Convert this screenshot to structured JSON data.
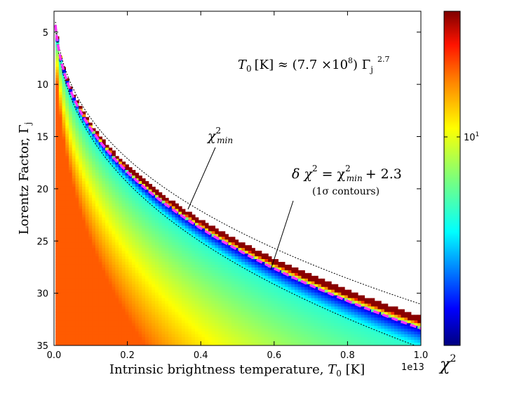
{
  "chart_data": {
    "type": "heatmap",
    "xlabel": "Intrinsic brightness temperature, T0 [K]",
    "xlabel_main": "Intrinsic brightness temperature,",
    "xlabel_sym": "T",
    "xlabel_sub": "0",
    "xlabel_unit": "[K]",
    "ylabel": "Lorentz Factor, Γj",
    "ylabel_main": "Lorentz Factor,",
    "ylabel_sym": "Γ",
    "ylabel_sub": "j",
    "x_offset_label": "1e13",
    "xlim": [
      0.0,
      1.0
    ],
    "ylim": [
      35,
      3
    ],
    "x_ticks": [
      "0.0",
      "0.2",
      "0.4",
      "0.6",
      "0.8",
      "1.0"
    ],
    "x_tick_values": [
      0.0,
      0.2,
      0.4,
      0.6,
      0.8,
      1.0
    ],
    "y_ticks": [
      "5",
      "10",
      "15",
      "20",
      "25",
      "30",
      "35"
    ],
    "y_tick_values": [
      5,
      10,
      15,
      20,
      25,
      30,
      35
    ],
    "colorbar": {
      "label": "χ",
      "label_sup": "2",
      "scale": "log",
      "tick_label": "10",
      "tick_label_sup": "1",
      "tick_value": 10
    },
    "fit_curve": {
      "name": "T0 best fit",
      "coefficient": 770000000.0,
      "exponent": 2.7,
      "color": "#ff33ff",
      "style": "dashed"
    },
    "contours": [
      {
        "name": "1 sigma lower",
        "gamma_factor": 0.93,
        "style": "dotted"
      },
      {
        "name": "1 sigma upper",
        "gamma_factor": 1.055,
        "style": "dotted"
      }
    ],
    "annotations": {
      "relation": {
        "lhs": "T",
        "lhs_sub": "0",
        "unit": "[K] ≈ (7.7 ×10",
        "exp8": "8",
        "close": ") Γ",
        "sub": "j",
        "pow": "2.7"
      },
      "chi_min": {
        "chi": "χ",
        "sup": "2",
        "sub": "min"
      },
      "delta_chi": {
        "delta": "δ χ",
        "sup": "2",
        "eq": "= χ",
        "sup2": "2",
        "sub": "min",
        "tail": "+ 2.3"
      },
      "contours_note": "(1σ contours)"
    }
  }
}
